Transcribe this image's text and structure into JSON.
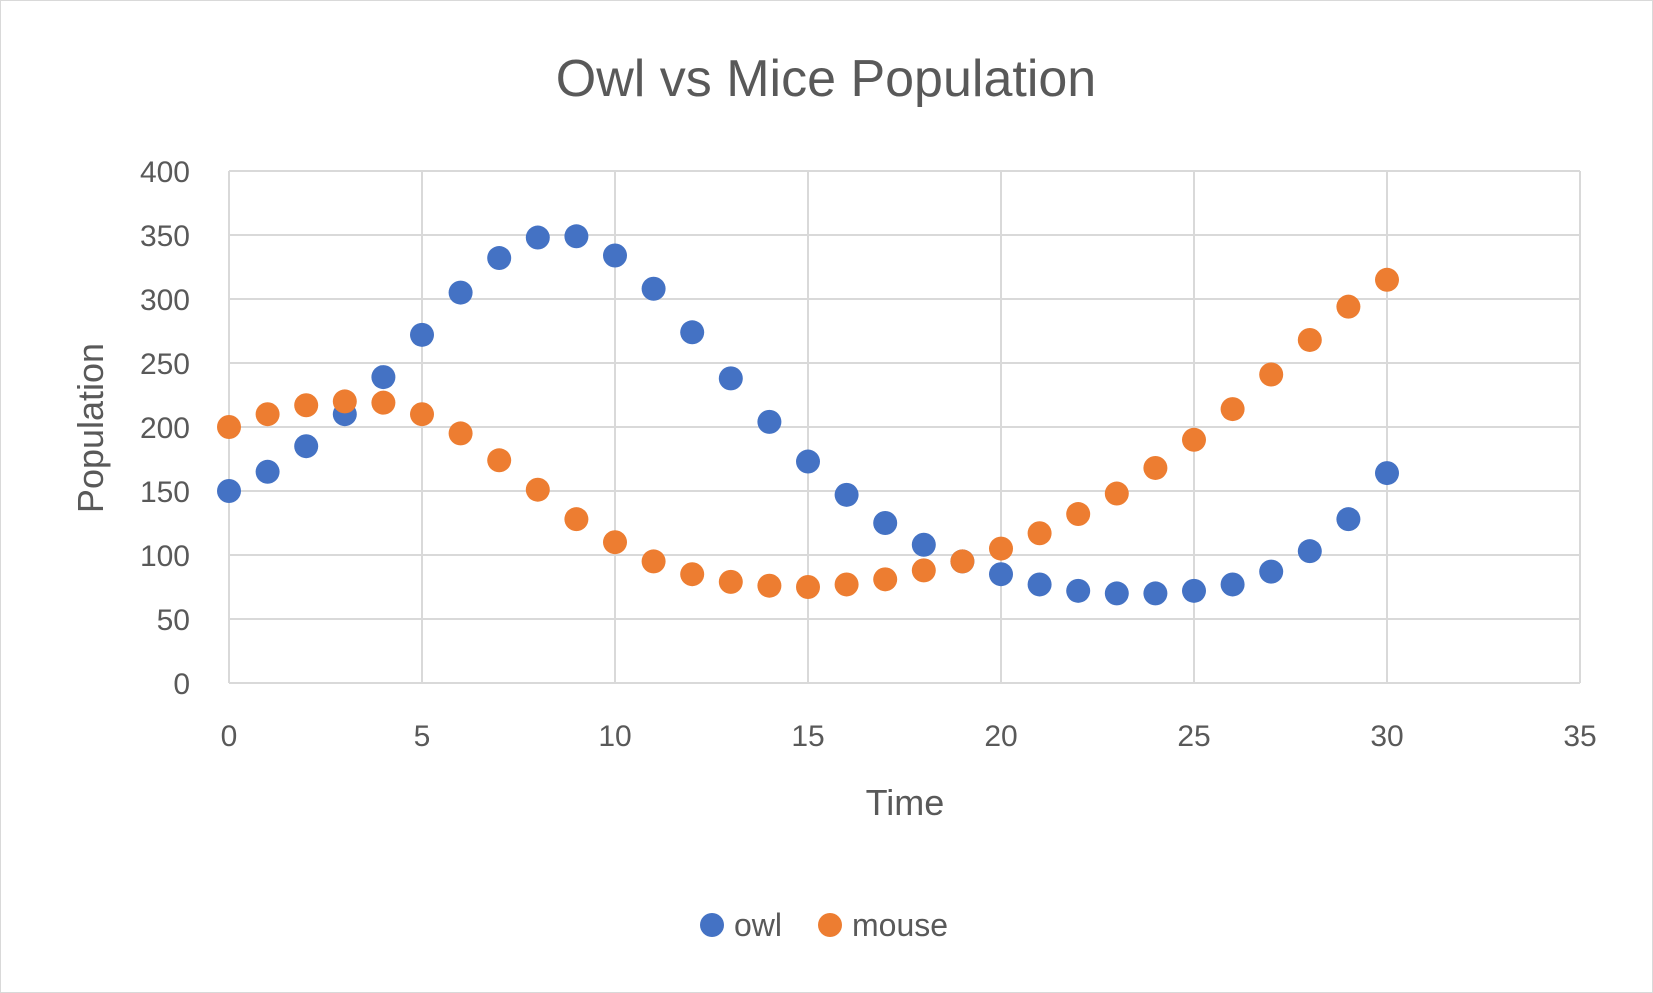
{
  "chart_data": {
    "type": "scatter",
    "title": "Owl vs Mice Population",
    "xlabel": "Time",
    "ylabel": "Population",
    "xlim": [
      0,
      35
    ],
    "ylim": [
      0,
      400
    ],
    "xticks": [
      "0",
      "5",
      "10",
      "15",
      "20",
      "25",
      "30",
      "35"
    ],
    "yticks": [
      "0",
      "50",
      "100",
      "150",
      "200",
      "250",
      "300",
      "350",
      "400"
    ],
    "grid": true,
    "legend_position": "bottom",
    "x": [
      0,
      1,
      2,
      3,
      4,
      5,
      6,
      7,
      8,
      9,
      10,
      11,
      12,
      13,
      14,
      15,
      16,
      17,
      18,
      19,
      20,
      21,
      22,
      23,
      24,
      25,
      26,
      27,
      28,
      29,
      30
    ],
    "series": [
      {
        "name": "owl",
        "color": "#4472c4",
        "values": [
          150,
          165,
          185,
          210,
          239,
          272,
          305,
          332,
          348,
          349,
          334,
          308,
          274,
          238,
          204,
          173,
          147,
          125,
          108,
          95,
          85,
          77,
          72,
          70,
          70,
          72,
          77,
          87,
          103,
          128,
          164
        ]
      },
      {
        "name": "mouse",
        "color": "#ed7d31",
        "values": [
          200,
          210,
          217,
          220,
          219,
          210,
          195,
          174,
          151,
          128,
          110,
          95,
          85,
          79,
          76,
          75,
          77,
          81,
          88,
          95,
          105,
          117,
          132,
          148,
          168,
          190,
          214,
          241,
          268,
          294,
          315
        ]
      }
    ]
  }
}
